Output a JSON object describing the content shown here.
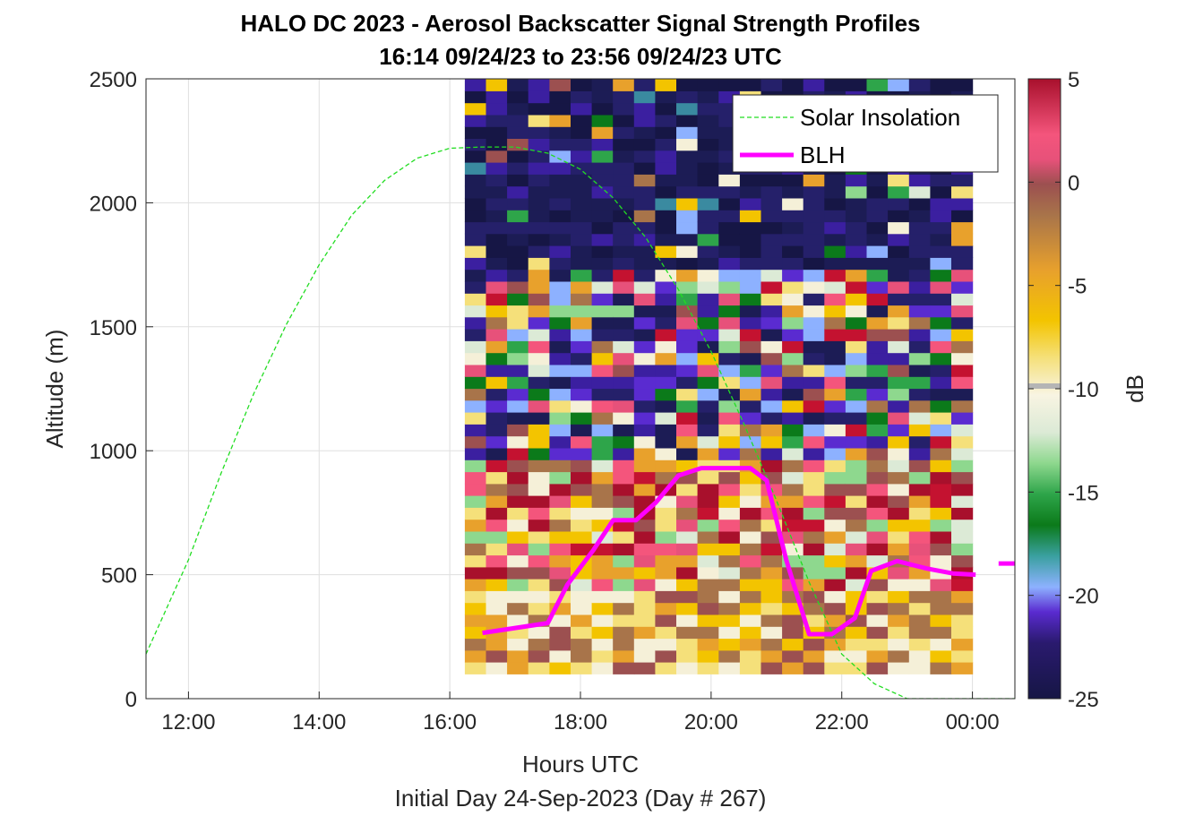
{
  "chart_data": {
    "type": "heatmap",
    "title": "HALO DC 2023 - Aerosol Backscatter Signal Strength Profiles",
    "subtitle": "16:14 09/24/23 to 23:56 09/24/23  UTC",
    "xlabel": "Hours UTC",
    "footer": "Initial Day 24-Sep-2023 (Day # 267)",
    "ylabel": "Altitude (m)",
    "colorbar_label": "dB",
    "x_ticks": [
      {
        "value": 12,
        "label": "12:00"
      },
      {
        "value": 14,
        "label": "14:00"
      },
      {
        "value": 16,
        "label": "16:00"
      },
      {
        "value": 18,
        "label": "18:00"
      },
      {
        "value": 20,
        "label": "20:00"
      },
      {
        "value": 22,
        "label": "22:00"
      },
      {
        "value": 24,
        "label": "00:00"
      }
    ],
    "y_ticks": [
      0,
      500,
      1000,
      1500,
      2000,
      2500
    ],
    "colorbar_ticks": [
      5,
      0,
      -5,
      -10,
      -15,
      -20,
      -25
    ],
    "xlim": [
      11.35,
      24.65
    ],
    "ylim": [
      0,
      2500
    ],
    "clim": [
      -25,
      5
    ],
    "grid": true,
    "legend_position": "top-right",
    "legend": [
      {
        "label": "Solar Insolation",
        "color": "#22dd22",
        "style": "dashed"
      },
      {
        "label": "BLH",
        "color": "#ff00ff",
        "style": "solid"
      }
    ],
    "heatmap": {
      "x_start": 16.23,
      "x_end": 24.0,
      "columns": 24,
      "y_start": 100,
      "y_end": 2500,
      "rows": 50,
      "description_note": "backscatter signal strength in dB; high values near the surface below ~1000 m, low values aloft"
    },
    "series": [
      {
        "name": "BLH",
        "x": [
          16.5,
          17.0,
          17.5,
          17.8,
          18.2,
          18.5,
          18.85,
          19.15,
          19.5,
          19.85,
          20.2,
          20.6,
          20.85,
          21.15,
          21.5,
          21.85,
          22.2,
          22.45,
          22.85,
          23.3,
          23.7,
          24.05
        ],
        "y": [
          265,
          285,
          305,
          460,
          600,
          720,
          720,
          790,
          900,
          930,
          930,
          930,
          880,
          560,
          260,
          260,
          325,
          515,
          555,
          525,
          505,
          500
        ]
      },
      {
        "name": "BLH-offscale",
        "x": [
          24.4,
          24.65
        ],
        "y": [
          545,
          545
        ]
      },
      {
        "name": "Solar Insolation",
        "x": [
          11.35,
          12.0,
          12.5,
          13.0,
          13.5,
          14.0,
          14.5,
          15.0,
          15.5,
          16.0,
          16.5,
          17.0,
          17.5,
          18.0,
          18.5,
          19.0,
          19.5,
          20.0,
          20.5,
          21.0,
          21.5,
          22.0,
          22.5,
          23.0,
          23.3,
          24.65
        ],
        "y": [
          180,
          560,
          910,
          1230,
          1510,
          1750,
          1950,
          2090,
          2180,
          2220,
          2225,
          2225,
          2200,
          2135,
          2020,
          1860,
          1650,
          1400,
          1110,
          800,
          470,
          180,
          60,
          0,
          0,
          0
        ]
      }
    ]
  }
}
